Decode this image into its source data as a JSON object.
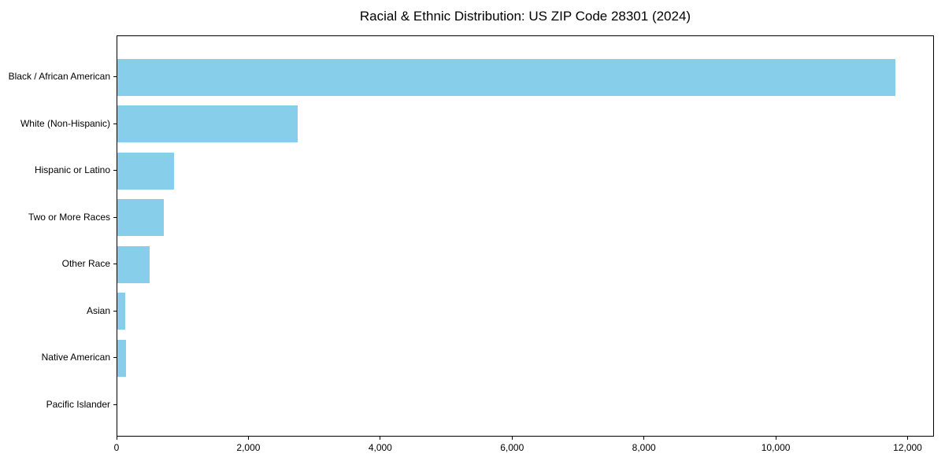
{
  "chart_data": {
    "type": "bar",
    "orientation": "horizontal",
    "title": "Racial & Ethnic Distribution: US ZIP Code 28301 (2024)",
    "categories": [
      "Black / African American",
      "White (Non-Hispanic)",
      "Hispanic or Latino",
      "Two or More Races",
      "Other Race",
      "Asian",
      "Native American",
      "Pacific Islander"
    ],
    "values": [
      11800,
      2730,
      860,
      710,
      490,
      120,
      130,
      0
    ],
    "xlabel": "",
    "ylabel": "",
    "xlim": [
      0,
      12400
    ],
    "xticks": {
      "values": [
        0,
        2000,
        4000,
        6000,
        8000,
        10000,
        12000
      ],
      "labels": [
        "0",
        "2,000",
        "4,000",
        "6,000",
        "8,000",
        "10,000",
        "12,000"
      ]
    },
    "grid": false,
    "legend": null,
    "colors": {
      "bar": "#87CEEB",
      "text": "#000000",
      "spine": "#000000",
      "background": "#ffffff"
    }
  }
}
